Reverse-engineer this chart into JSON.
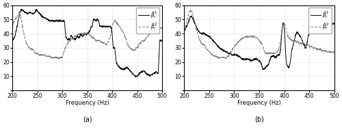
{
  "title_a": "(a)",
  "title_b": "(b)",
  "xlabel": "Frequency (Hz)",
  "xlim": [
    200,
    500
  ],
  "ylim": [
    0,
    60
  ],
  "yticks": [
    0,
    10,
    20,
    30,
    40,
    50,
    60
  ],
  "xticks": [
    200,
    250,
    300,
    350,
    400,
    450,
    500
  ],
  "line_color_solid": "#000000",
  "line_color_dash": "#777777",
  "background_color": "#ffffff",
  "grid_color": "#999999"
}
